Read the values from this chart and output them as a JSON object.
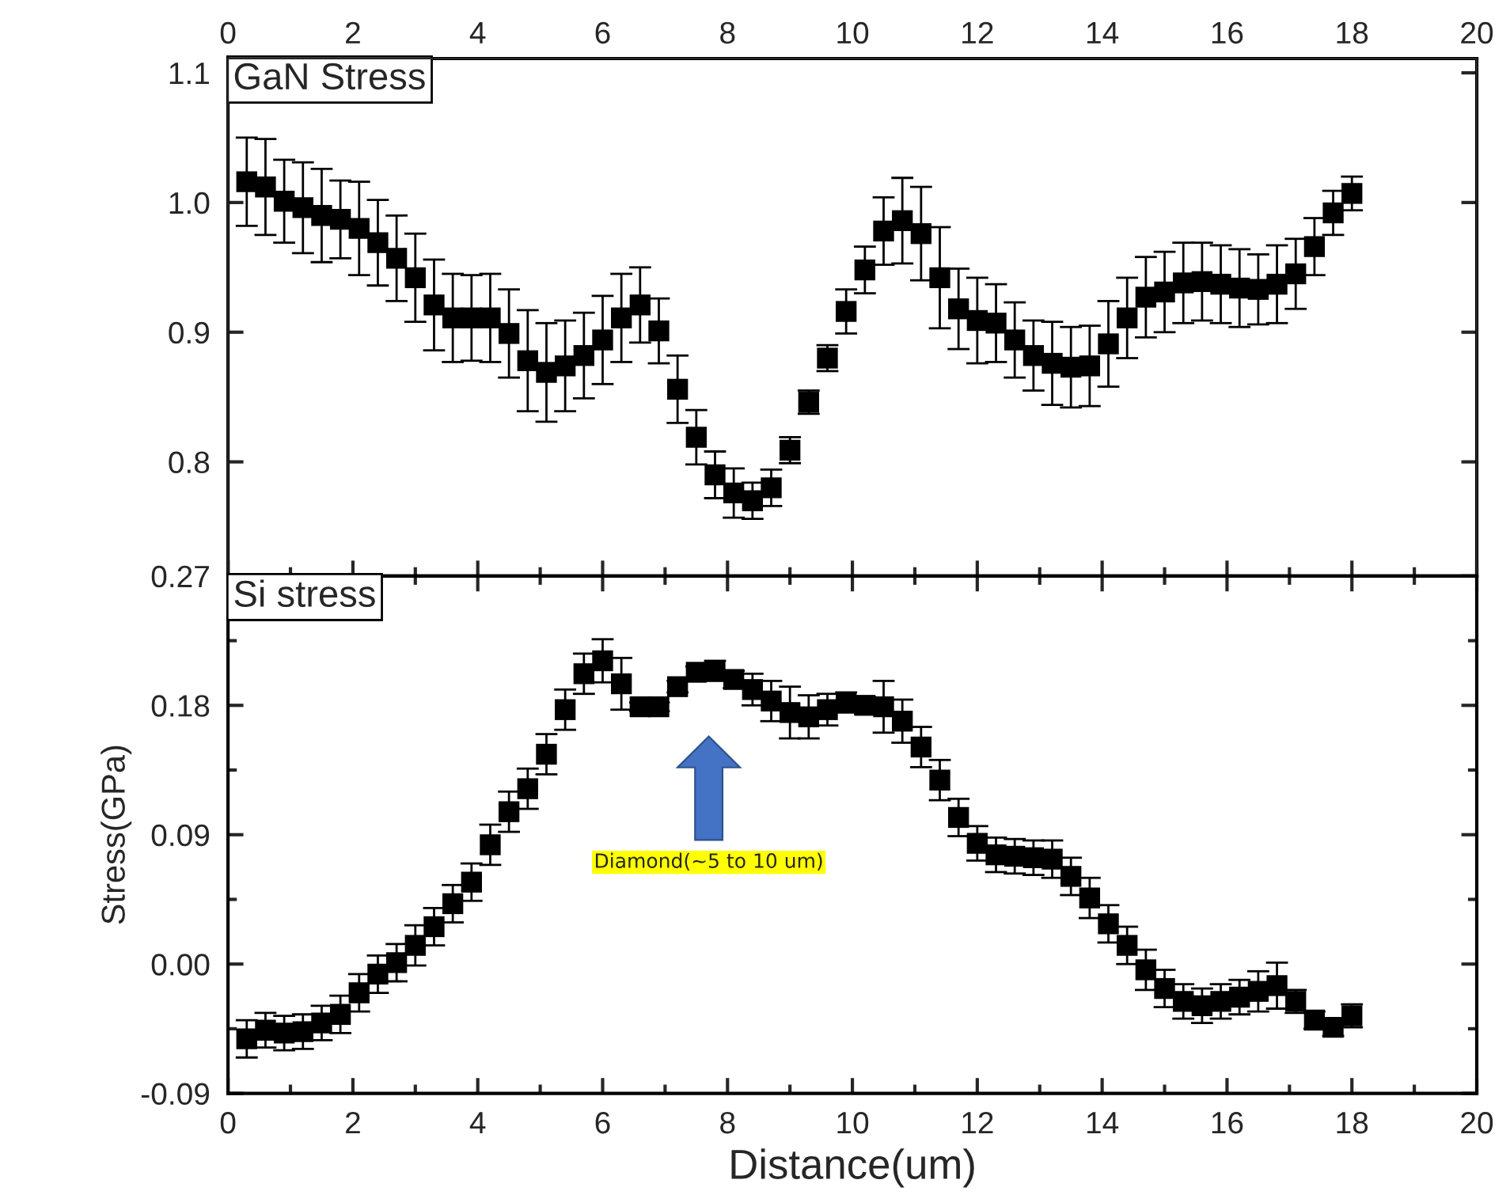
{
  "chart_data": [
    {
      "type": "scatter",
      "title": "GaN Stress",
      "marker": "square",
      "grid": false,
      "legend": false,
      "tick_labels": "y",
      "xlim": [
        0,
        20
      ],
      "xticks": [
        0,
        2,
        4,
        6,
        8,
        10,
        12,
        14,
        16,
        18,
        20
      ],
      "x2lim": [
        0,
        20
      ],
      "x2ticks": [
        0,
        2,
        4,
        6,
        8,
        10,
        12,
        14,
        16,
        18,
        20
      ],
      "ylim": [
        0.712,
        1.111
      ],
      "yticks": [
        0.8,
        0.9,
        {
          "value": 1.0,
          "label": "1.0"
        },
        1.1
      ],
      "x": [
        0.3,
        0.6,
        0.9,
        1.2,
        1.5,
        1.8,
        2.1,
        2.4,
        2.7,
        3.0,
        3.3,
        3.6,
        3.9,
        4.2,
        4.5,
        4.8,
        5.1,
        5.4,
        5.7,
        6.0,
        6.3,
        6.6,
        6.9,
        7.2,
        7.5,
        7.8,
        8.1,
        8.4,
        8.7,
        9.0,
        9.3,
        9.6,
        9.9,
        10.2,
        10.5,
        10.8,
        11.1,
        11.4,
        11.7,
        12.0,
        12.3,
        12.6,
        12.9,
        13.2,
        13.5,
        13.8,
        14.1,
        14.4,
        14.7,
        15.0,
        15.3,
        15.6,
        15.9,
        16.2,
        16.5,
        16.8,
        17.1,
        17.4,
        17.7,
        18.0
      ],
      "series": [
        {
          "color": "#000000",
          "values": [
            1.016,
            1.012,
            1.001,
            0.996,
            0.99,
            0.987,
            0.98,
            0.969,
            0.957,
            0.942,
            0.921,
            0.911,
            0.911,
            0.911,
            0.899,
            0.878,
            0.869,
            0.874,
            0.882,
            0.894,
            0.911,
            0.921,
            0.901,
            0.856,
            0.819,
            0.79,
            0.776,
            0.77,
            0.78,
            0.809,
            0.846,
            0.88,
            0.916,
            0.948,
            0.978,
            0.986,
            0.976,
            0.942,
            0.918,
            0.909,
            0.907,
            0.894,
            0.882,
            0.876,
            0.873,
            0.874,
            0.891,
            0.911,
            0.927,
            0.931,
            0.938,
            0.939,
            0.937,
            0.934,
            0.933,
            0.937,
            0.945,
            0.966,
            0.992,
            1.007
          ],
          "errors": [
            0.034,
            0.037,
            0.032,
            0.035,
            0.036,
            0.03,
            0.036,
            0.033,
            0.033,
            0.034,
            0.035,
            0.034,
            0.033,
            0.034,
            0.034,
            0.039,
            0.038,
            0.035,
            0.033,
            0.034,
            0.034,
            0.029,
            0.025,
            0.026,
            0.021,
            0.018,
            0.019,
            0.014,
            0.014,
            0.01,
            0.009,
            0.01,
            0.017,
            0.018,
            0.026,
            0.033,
            0.036,
            0.039,
            0.031,
            0.033,
            0.03,
            0.029,
            0.027,
            0.032,
            0.031,
            0.031,
            0.033,
            0.031,
            0.031,
            0.031,
            0.031,
            0.03,
            0.03,
            0.03,
            0.027,
            0.03,
            0.027,
            0.022,
            0.017,
            0.013
          ]
        }
      ]
    },
    {
      "type": "scatter",
      "title": "Si stress",
      "marker": "square",
      "grid": false,
      "legend": false,
      "xlabel": "Distance(um)",
      "ylabel": "Stress(GPa)",
      "xlim": [
        0,
        20
      ],
      "xticks": [
        0,
        2,
        4,
        6,
        8,
        10,
        12,
        14,
        16,
        18,
        20
      ],
      "ylim": [
        -0.09,
        0.27
      ],
      "yticks": [
        {
          "value": -0.09,
          "label": "-0.09"
        },
        {
          "value": 0.0,
          "label": "0.00"
        },
        {
          "value": 0.09,
          "label": "0.09"
        },
        {
          "value": 0.18,
          "label": "0.18"
        },
        {
          "value": 0.27,
          "label": "0.27"
        }
      ],
      "annotations": [
        "Diamond(~5 to 10 um)"
      ],
      "x": [
        0.3,
        0.6,
        0.9,
        1.2,
        1.5,
        1.8,
        2.1,
        2.4,
        2.7,
        3.0,
        3.3,
        3.6,
        3.9,
        4.2,
        4.5,
        4.8,
        5.1,
        5.4,
        5.7,
        6.0,
        6.3,
        6.6,
        6.9,
        7.2,
        7.5,
        7.8,
        8.1,
        8.4,
        8.7,
        9.0,
        9.3,
        9.6,
        9.9,
        10.2,
        10.5,
        10.8,
        11.1,
        11.4,
        11.7,
        12.0,
        12.3,
        12.6,
        12.9,
        13.2,
        13.5,
        13.8,
        14.1,
        14.4,
        14.7,
        15.0,
        15.3,
        15.6,
        15.9,
        16.2,
        16.5,
        16.8,
        17.1,
        17.4,
        17.7,
        18.0
      ],
      "series": [
        {
          "color": "#000000",
          "values": [
            -0.052,
            -0.046,
            -0.048,
            -0.047,
            -0.041,
            -0.035,
            -0.02,
            -0.007,
            0.001,
            0.013,
            0.026,
            0.042,
            0.057,
            0.083,
            0.106,
            0.122,
            0.146,
            0.177,
            0.202,
            0.211,
            0.195,
            0.179,
            0.179,
            0.193,
            0.203,
            0.204,
            0.198,
            0.191,
            0.183,
            0.175,
            0.172,
            0.177,
            0.182,
            0.18,
            0.179,
            0.169,
            0.151,
            0.128,
            0.102,
            0.084,
            0.076,
            0.075,
            0.074,
            0.073,
            0.061,
            0.046,
            0.028,
            0.013,
            -0.004,
            -0.017,
            -0.026,
            -0.029,
            -0.026,
            -0.023,
            -0.019,
            -0.015,
            -0.026,
            -0.039,
            -0.044,
            -0.036
          ],
          "errors": [
            0.013,
            0.012,
            0.012,
            0.012,
            0.012,
            0.013,
            0.013,
            0.013,
            0.013,
            0.014,
            0.013,
            0.013,
            0.013,
            0.014,
            0.014,
            0.014,
            0.014,
            0.014,
            0.014,
            0.015,
            0.018,
            0.003,
            0.003,
            0.004,
            0.004,
            0.007,
            0.006,
            0.011,
            0.014,
            0.018,
            0.015,
            0.011,
            0.007,
            0.006,
            0.018,
            0.015,
            0.014,
            0.014,
            0.013,
            0.012,
            0.012,
            0.012,
            0.012,
            0.013,
            0.013,
            0.014,
            0.013,
            0.013,
            0.014,
            0.013,
            0.012,
            0.012,
            0.012,
            0.012,
            0.014,
            0.016,
            0.008,
            0.006,
            0.006,
            0.008
          ]
        }
      ]
    }
  ]
}
